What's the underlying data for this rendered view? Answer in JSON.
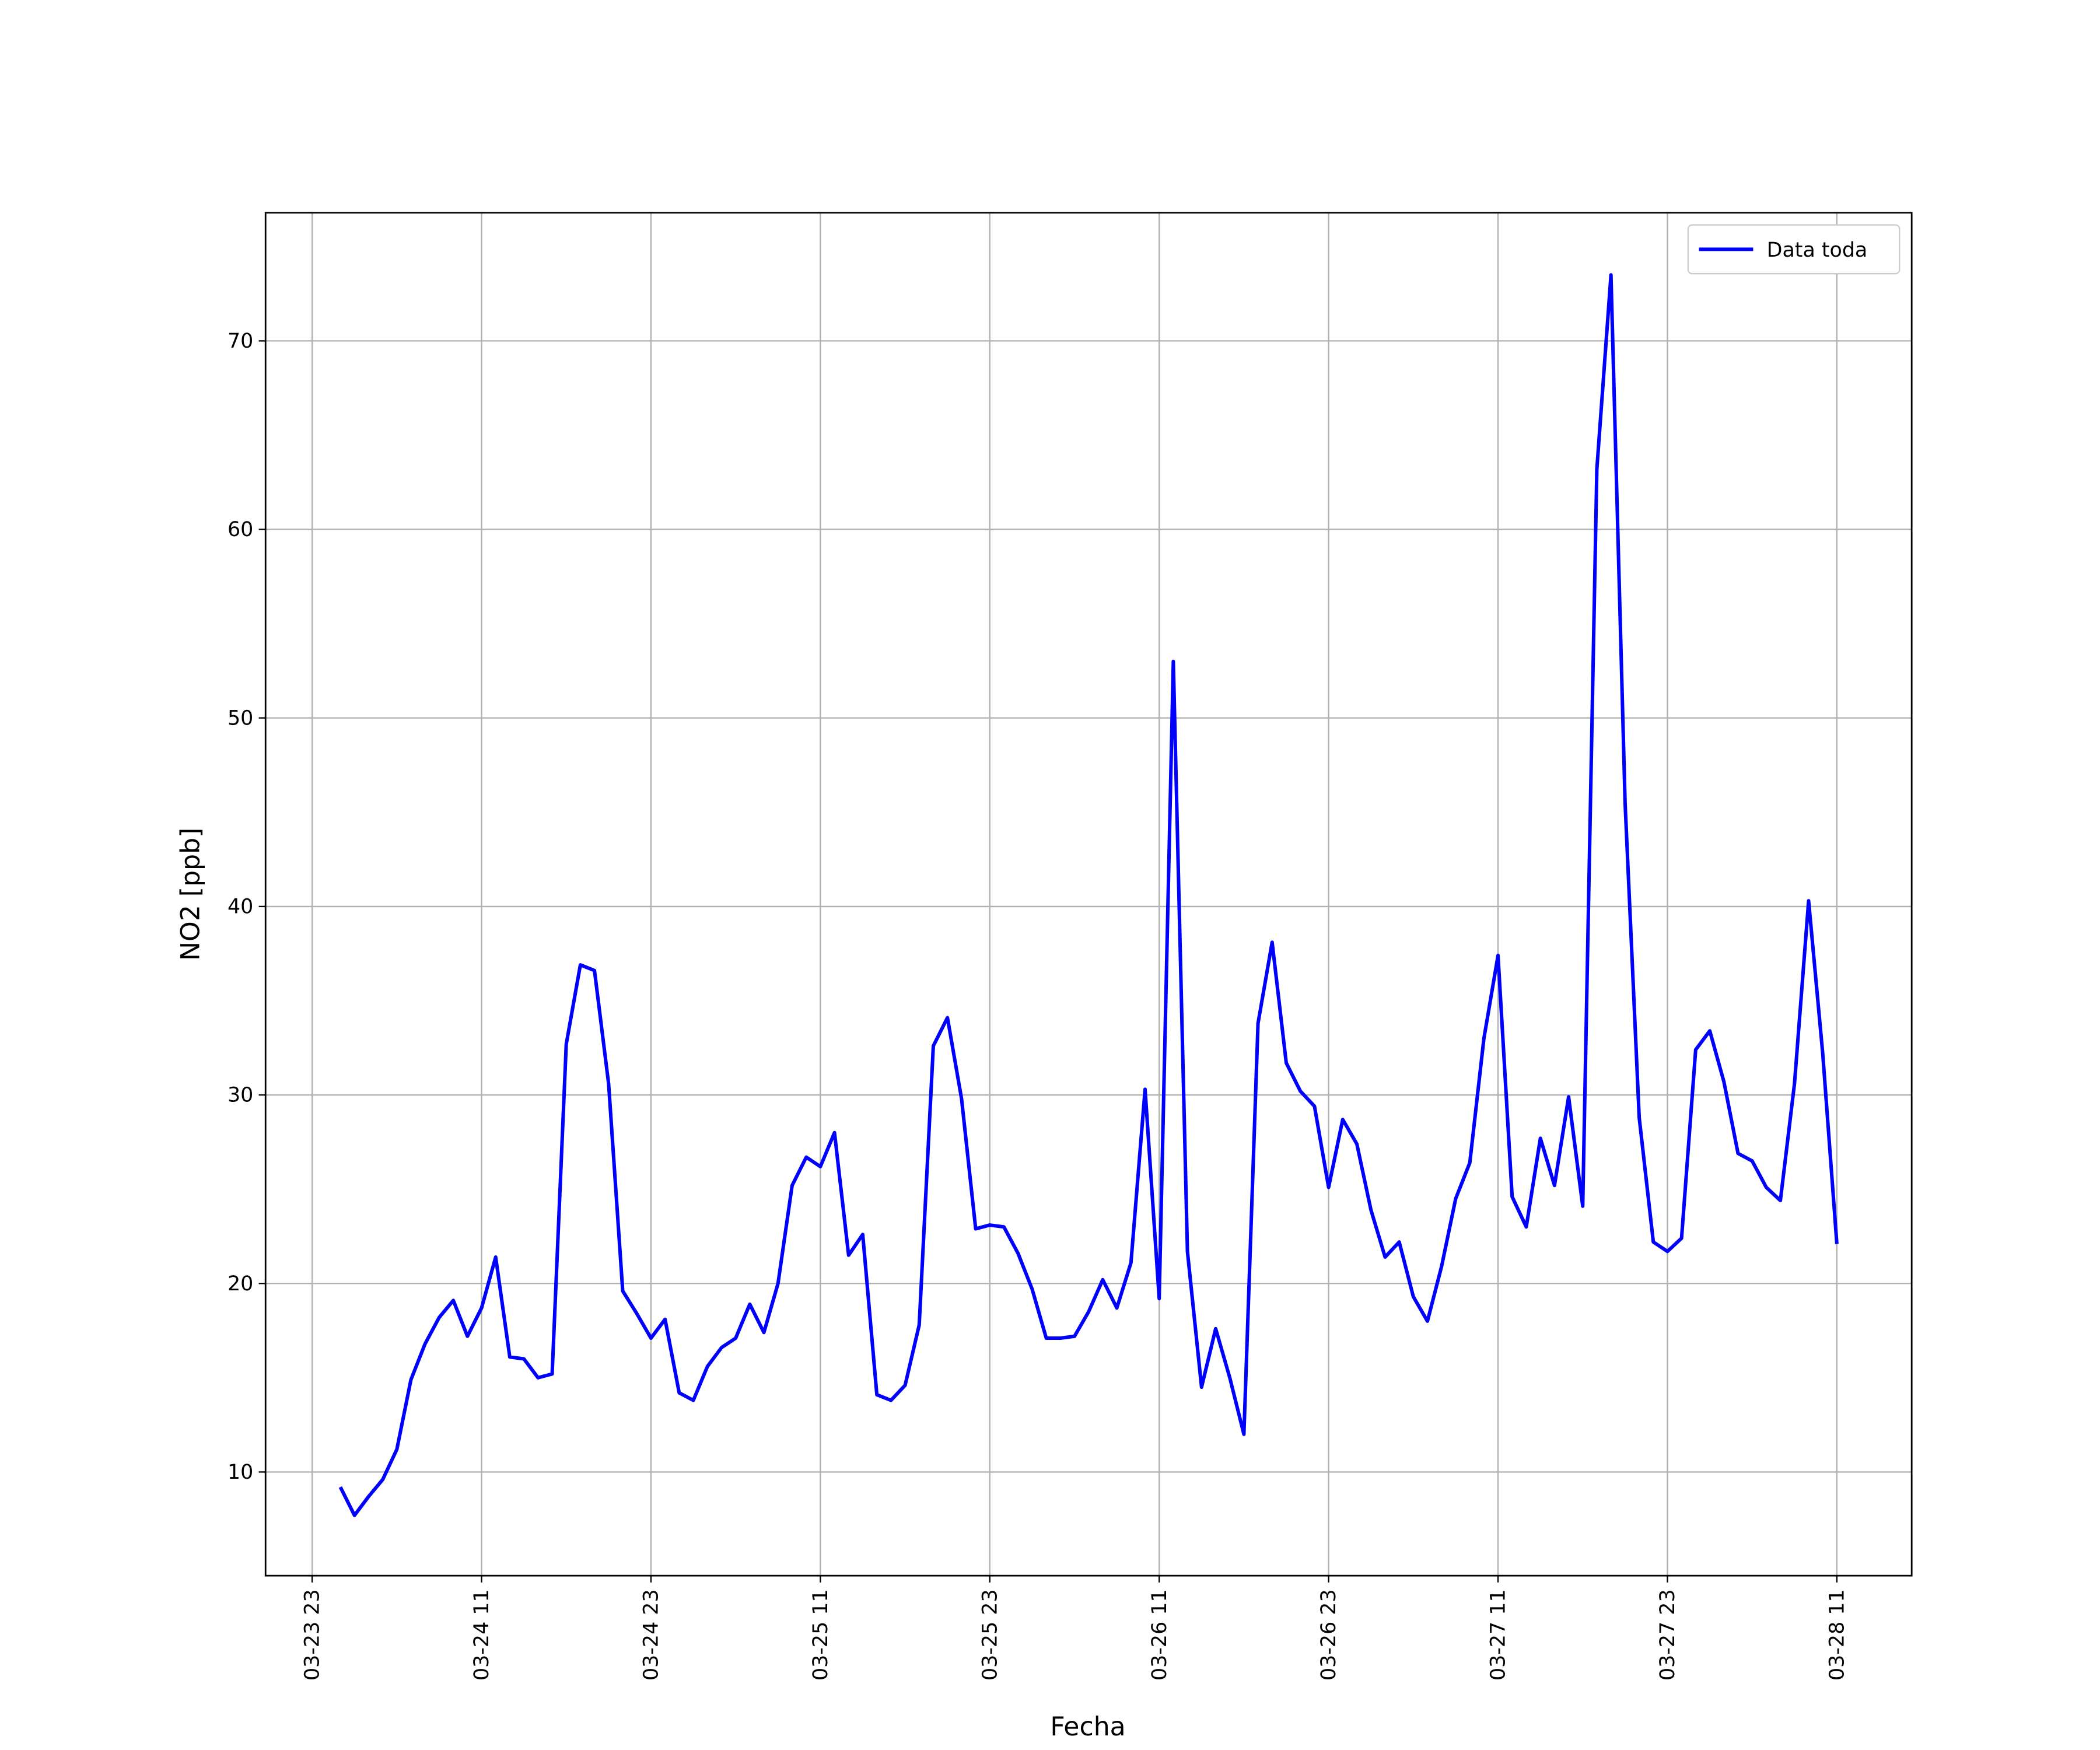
{
  "chart_data": {
    "type": "line",
    "x_label": "Fecha",
    "y_label": "NO2 [ppb]",
    "x": [
      "03-24 01",
      "03-24 02",
      "03-24 03",
      "03-24 04",
      "03-24 05",
      "03-24 06",
      "03-24 07",
      "03-24 08",
      "03-24 09",
      "03-24 10",
      "03-24 11",
      "03-24 12",
      "03-24 13",
      "03-24 14",
      "03-24 15",
      "03-24 16",
      "03-24 17",
      "03-24 18",
      "03-24 19",
      "03-24 20",
      "03-24 21",
      "03-24 22",
      "03-24 23",
      "03-25 00",
      "03-25 01",
      "03-25 02",
      "03-25 03",
      "03-25 04",
      "03-25 05",
      "03-25 06",
      "03-25 07",
      "03-25 08",
      "03-25 09",
      "03-25 10",
      "03-25 11",
      "03-25 12",
      "03-25 13",
      "03-25 14",
      "03-25 15",
      "03-25 16",
      "03-25 17",
      "03-25 18",
      "03-25 19",
      "03-25 20",
      "03-25 21",
      "03-25 22",
      "03-25 23",
      "03-26 00",
      "03-26 01",
      "03-26 02",
      "03-26 03",
      "03-26 04",
      "03-26 05",
      "03-26 06",
      "03-26 07",
      "03-26 08",
      "03-26 09",
      "03-26 10",
      "03-26 11",
      "03-26 12",
      "03-26 13",
      "03-26 14",
      "03-26 15",
      "03-26 16",
      "03-26 17",
      "03-26 18",
      "03-26 19",
      "03-26 20",
      "03-26 21",
      "03-26 22",
      "03-26 23",
      "03-27 00",
      "03-27 01",
      "03-27 02",
      "03-27 03",
      "03-27 04",
      "03-27 05",
      "03-27 06",
      "03-27 07",
      "03-27 08",
      "03-27 09",
      "03-27 10",
      "03-27 11",
      "03-27 12",
      "03-27 13",
      "03-27 14",
      "03-27 15",
      "03-27 16",
      "03-27 17",
      "03-27 18",
      "03-27 19",
      "03-27 20",
      "03-27 21",
      "03-27 22",
      "03-27 23",
      "03-28 00",
      "03-28 01",
      "03-28 02",
      "03-28 03",
      "03-28 04",
      "03-28 05",
      "03-28 06",
      "03-28 07",
      "03-28 08",
      "03-28 09",
      "03-28 10",
      "03-28 11"
    ],
    "series": [
      {
        "name": "Data toda",
        "color": "#0000ff",
        "values": [
          9.2,
          7.7,
          8.7,
          9.6,
          11.2,
          14.9,
          16.8,
          18.2,
          19.1,
          17.2,
          18.7,
          21.4,
          16.1,
          16.0,
          15.0,
          15.2,
          32.7,
          36.9,
          36.6,
          30.6,
          19.6,
          18.4,
          17.1,
          18.1,
          14.2,
          13.8,
          15.6,
          16.6,
          17.1,
          18.9,
          17.4,
          20.0,
          25.2,
          26.7,
          26.2,
          28.0,
          21.5,
          22.6,
          14.1,
          13.8,
          14.6,
          17.8,
          32.6,
          34.1,
          29.8,
          22.9,
          23.1,
          23.0,
          21.6,
          19.7,
          17.1,
          17.1,
          17.2,
          18.5,
          20.2,
          18.7,
          21.1,
          30.3,
          19.2,
          53.0,
          21.7,
          14.5,
          17.6,
          15.0,
          12.0,
          33.8,
          38.1,
          31.7,
          30.2,
          29.4,
          25.1,
          28.7,
          27.4,
          23.9,
          21.4,
          22.2,
          19.3,
          18.0,
          20.9,
          24.5,
          26.4,
          33.0,
          37.4,
          24.6,
          23.0,
          27.7,
          25.2,
          29.9,
          24.1,
          63.2,
          73.5,
          45.5,
          28.8,
          22.2,
          21.7,
          22.4,
          32.4,
          33.4,
          30.7,
          26.9,
          26.5,
          25.1,
          24.4,
          30.6,
          40.3,
          32.2,
          22.1
        ]
      }
    ],
    "xticks": [
      "03-23 23",
      "03-24 11",
      "03-24 23",
      "03-25 11",
      "03-25 23",
      "03-26 11",
      "03-26 23",
      "03-27 11",
      "03-27 23",
      "03-28 11"
    ],
    "ylim": [
      4.5,
      76.8
    ],
    "yticks": [
      10,
      20,
      30,
      40,
      50,
      60,
      70
    ],
    "grid": true,
    "legend": "upper right"
  }
}
